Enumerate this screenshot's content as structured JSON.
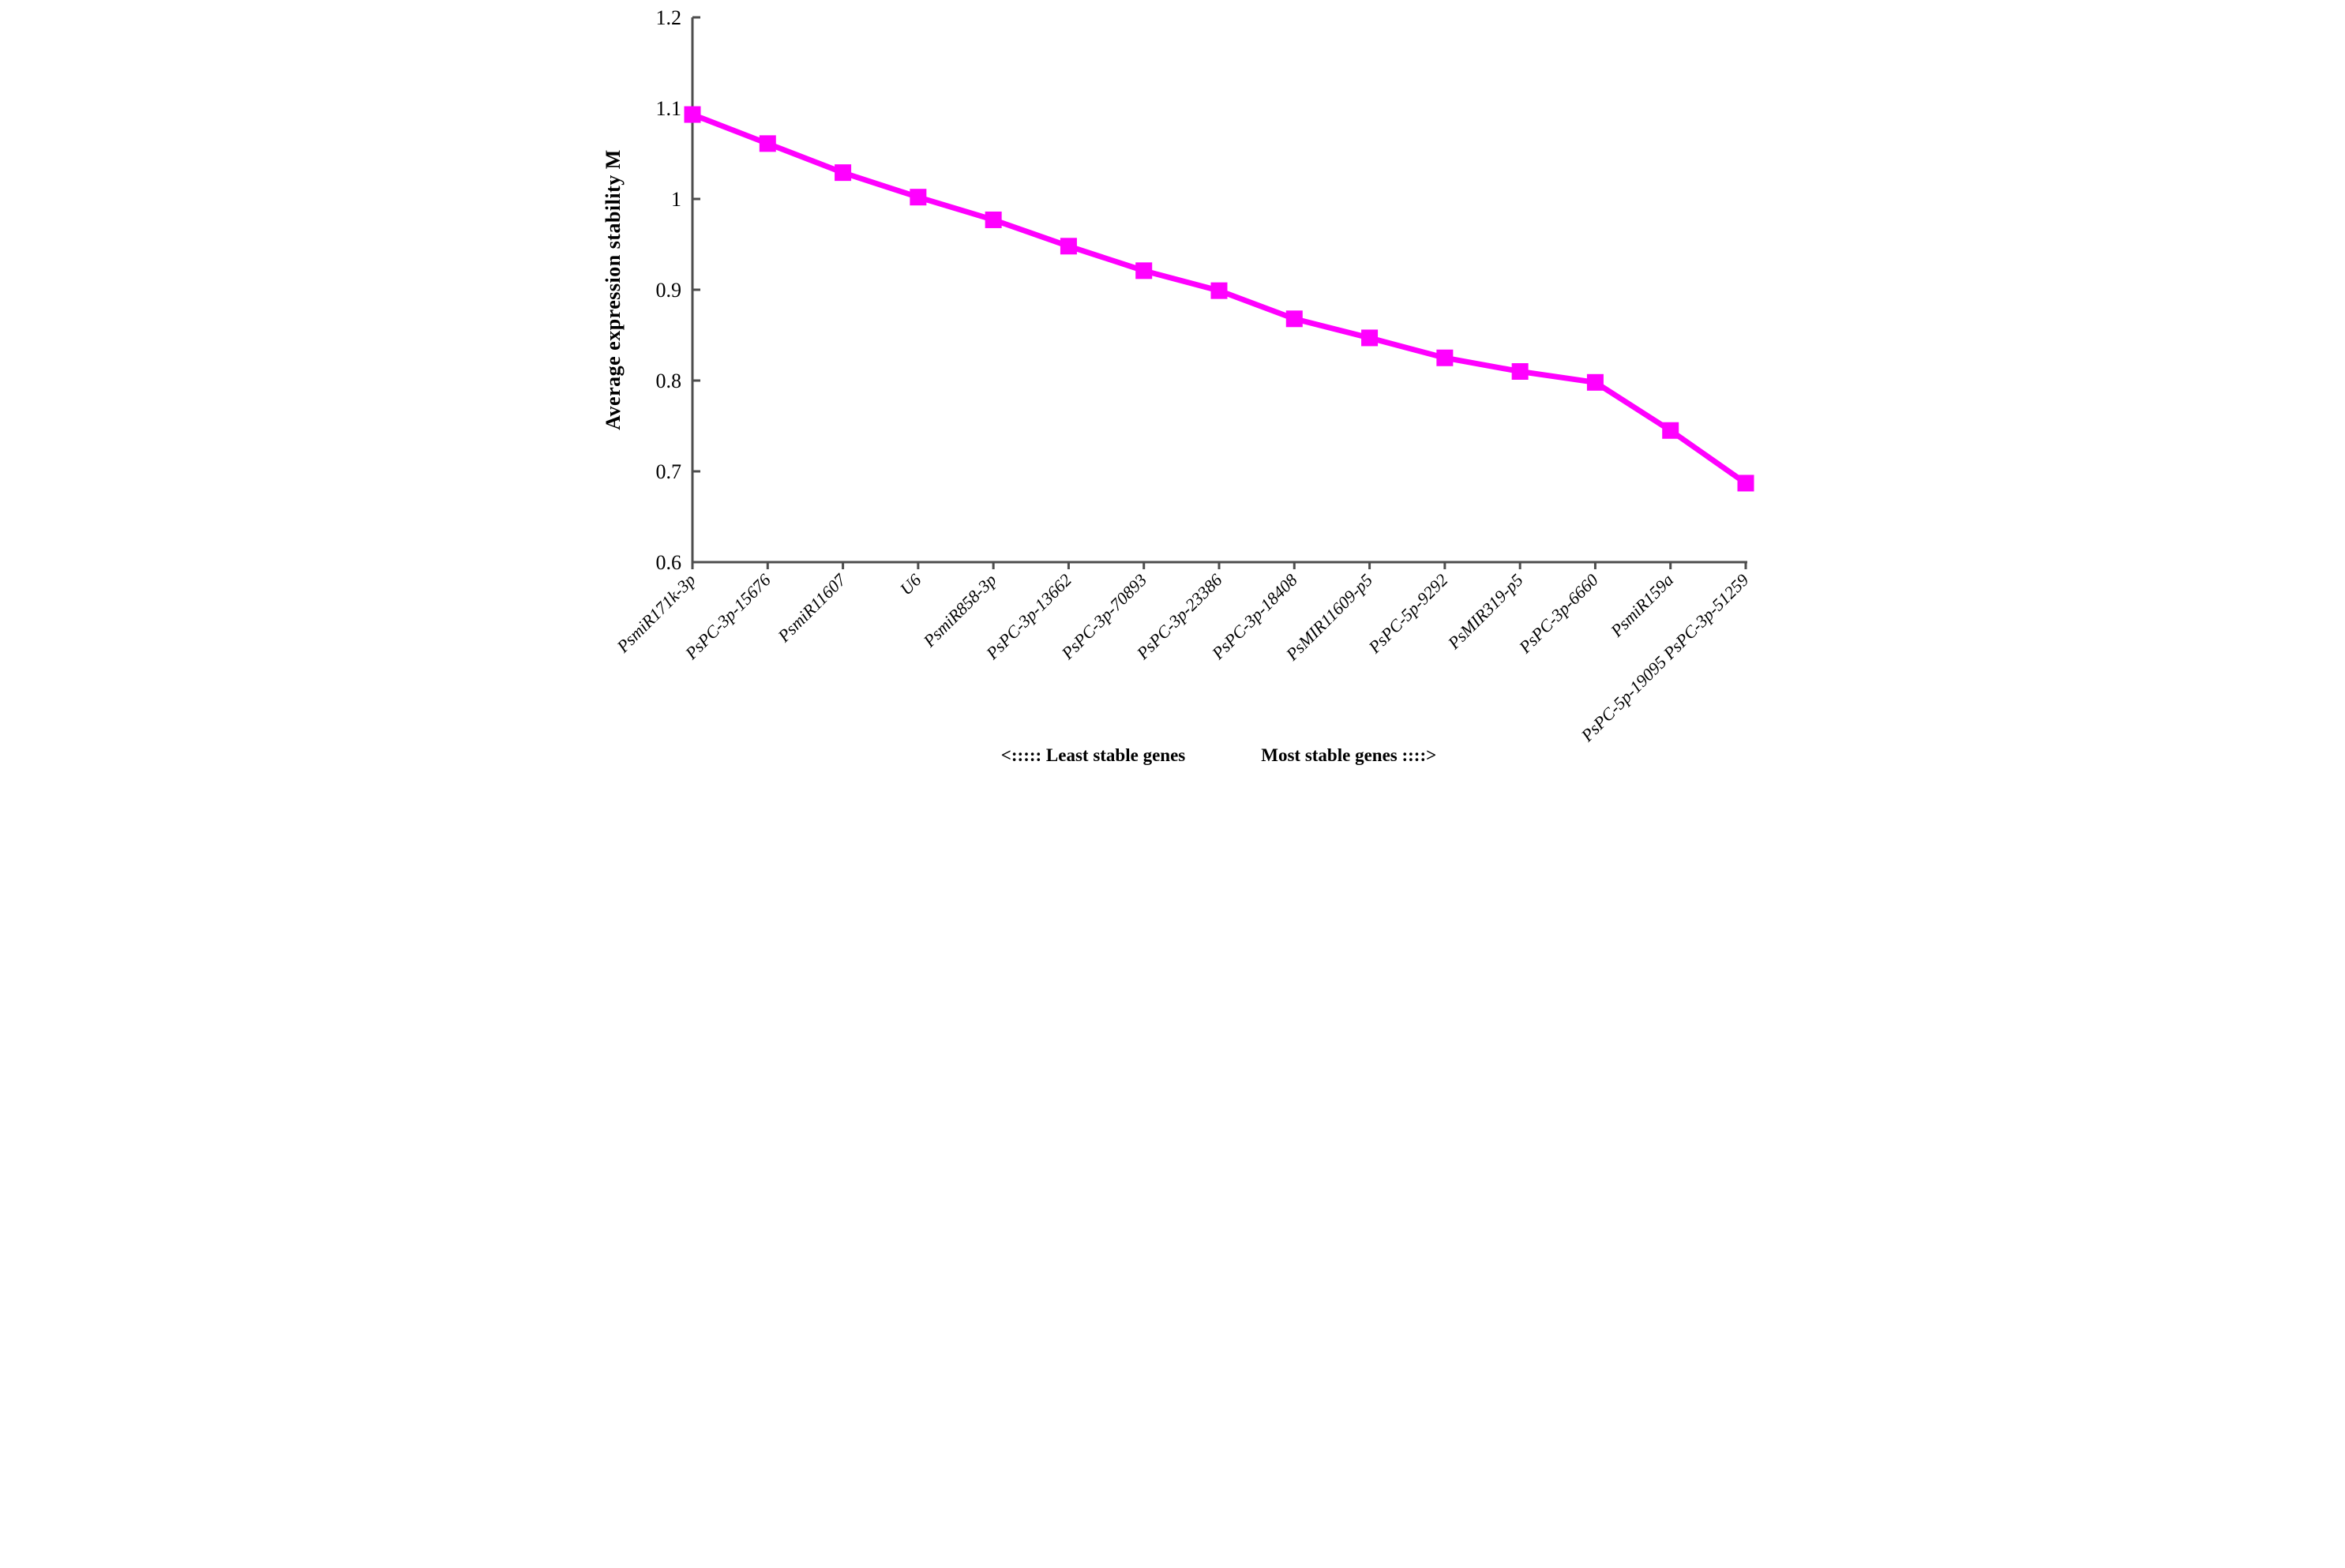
{
  "chart_data": {
    "type": "line",
    "title": "",
    "ylabel": "Average expression stability M",
    "xlabel": "",
    "series_name": "Average expression stability M",
    "categories": [
      "PsmiR171k-3p",
      "PsPC-3p-15676",
      "PsmiR11607",
      "U6",
      "PsmiR858-3p",
      "PsPC-3p-13662",
      "PsPC-3p-70893",
      "PsPC-3p-23386",
      "PsPC-3p-18408",
      "PsMIR11609-p5",
      "PsPC-5p-9292",
      "PsMIR319-p5",
      "PsPC-3p-6660",
      "PsmiR159a",
      "PsPC-5p-19095 PsPC-3p-51259"
    ],
    "values": [
      1.093,
      1.061,
      1.029,
      1.002,
      0.977,
      0.948,
      0.921,
      0.899,
      0.868,
      0.847,
      0.825,
      0.81,
      0.798,
      0.745,
      0.687
    ],
    "ylim": [
      0.6,
      1.2
    ],
    "yticks": [
      "1.2",
      "1.1",
      "1",
      "0.9",
      "0.8",
      "0.7",
      "0.6"
    ],
    "ytick_values": [
      1.2,
      1.1,
      1.0,
      0.9,
      0.8,
      0.7,
      0.6
    ],
    "grid": false,
    "legend_position": "none",
    "line_color": "#FF00FF",
    "marker": "square",
    "axis_color": "#4d4d4d",
    "annotation_left": "<:::::  Least stable genes",
    "annotation_right": "Most stable genes ::::>"
  }
}
